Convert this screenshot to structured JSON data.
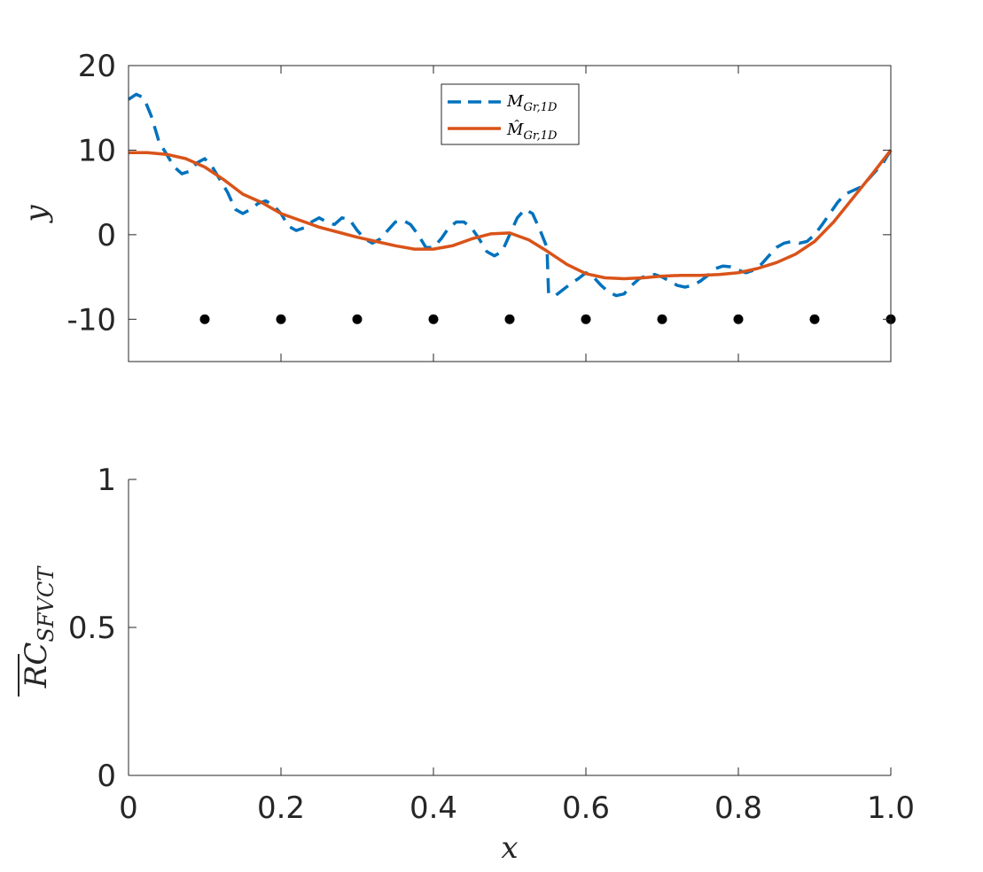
{
  "chart_data": [
    {
      "type": "line",
      "xlim": [
        0,
        1
      ],
      "ylim": [
        -15,
        20
      ],
      "ylabel": "y",
      "yticks": [
        "-10",
        "0",
        "10",
        "20"
      ],
      "yticks_values": [
        -10,
        0,
        10,
        20
      ],
      "xticks_values": [
        0,
        0.2,
        0.4,
        0.6,
        0.8,
        1.0
      ],
      "show_xticklabels": false,
      "grid": false,
      "legend_position": "top-center",
      "series": [
        {
          "name": "M_{Gr,1D}",
          "legend_main": "M",
          "legend_sub": "Gr,1D",
          "style": "dashed",
          "color": "#0072BD",
          "x": [
            0,
            0.01,
            0.02,
            0.03,
            0.04,
            0.05,
            0.06,
            0.07,
            0.08,
            0.09,
            0.1,
            0.11,
            0.12,
            0.13,
            0.14,
            0.15,
            0.16,
            0.17,
            0.18,
            0.19,
            0.2,
            0.21,
            0.22,
            0.23,
            0.24,
            0.25,
            0.26,
            0.27,
            0.28,
            0.29,
            0.3,
            0.31,
            0.32,
            0.33,
            0.34,
            0.35,
            0.36,
            0.37,
            0.38,
            0.39,
            0.4,
            0.41,
            0.42,
            0.43,
            0.44,
            0.45,
            0.46,
            0.47,
            0.48,
            0.49,
            0.5,
            0.51,
            0.52,
            0.53,
            0.54,
            0.549,
            0.551,
            0.56,
            0.57,
            0.58,
            0.59,
            0.6,
            0.61,
            0.62,
            0.63,
            0.64,
            0.65,
            0.66,
            0.67,
            0.68,
            0.69,
            0.7,
            0.71,
            0.72,
            0.73,
            0.74,
            0.75,
            0.76,
            0.77,
            0.78,
            0.79,
            0.8,
            0.81,
            0.82,
            0.83,
            0.84,
            0.85,
            0.86,
            0.87,
            0.88,
            0.89,
            0.9,
            0.91,
            0.92,
            0.93,
            0.94,
            0.95,
            0.96,
            0.97,
            0.98,
            0.99,
            1.0
          ],
          "y": [
            16,
            16.6,
            16.2,
            14,
            11,
            9.5,
            8,
            7.2,
            7.5,
            8.5,
            9,
            8,
            6.5,
            5,
            3,
            2.5,
            3,
            3.7,
            4,
            3.5,
            2.5,
            1,
            0.5,
            0.8,
            1.5,
            2,
            1.5,
            1.2,
            2,
            1.8,
            0.5,
            -0.5,
            -1,
            -0.5,
            0.5,
            1.5,
            1.7,
            1.2,
            0,
            -1.5,
            -1.5,
            -0.5,
            0.8,
            1.5,
            1.5,
            0.8,
            -0.5,
            -2,
            -2.5,
            -2,
            0,
            2,
            3,
            2.5,
            0.5,
            -1.5,
            -7,
            -7.2,
            -6.5,
            -5.8,
            -5.2,
            -4.5,
            -5,
            -6,
            -6.8,
            -7.2,
            -7,
            -6,
            -5.2,
            -4.8,
            -4.7,
            -5,
            -5.5,
            -6,
            -6.2,
            -6,
            -5.5,
            -4.8,
            -4,
            -3.7,
            -3.8,
            -4.2,
            -4.5,
            -4.2,
            -3.5,
            -2.5,
            -1.5,
            -1,
            -0.8,
            -1,
            -0.8,
            0,
            1.2,
            2.5,
            3.8,
            4.8,
            5.2,
            5.6,
            6.5,
            7.5,
            8.5,
            10
          ]
        },
        {
          "name": "̂M_{Gr,1D}",
          "legend_main": "M̂",
          "legend_sub": "Gr,1D",
          "style": "solid",
          "color": "#D95319",
          "x": [
            0,
            0.025,
            0.05,
            0.075,
            0.1,
            0.125,
            0.15,
            0.175,
            0.2,
            0.225,
            0.25,
            0.275,
            0.3,
            0.325,
            0.35,
            0.375,
            0.4,
            0.425,
            0.45,
            0.475,
            0.5,
            0.525,
            0.55,
            0.575,
            0.6,
            0.625,
            0.65,
            0.675,
            0.7,
            0.725,
            0.75,
            0.775,
            0.8,
            0.825,
            0.85,
            0.875,
            0.9,
            0.925,
            0.95,
            0.975,
            1.0
          ],
          "y": [
            9.7,
            9.7,
            9.5,
            9,
            8,
            6.5,
            4.8,
            3.8,
            2.5,
            1.7,
            0.9,
            0.3,
            -0.3,
            -0.8,
            -1.3,
            -1.7,
            -1.7,
            -1.3,
            -0.5,
            0.1,
            0.2,
            -0.6,
            -2,
            -3.5,
            -4.6,
            -5.1,
            -5.2,
            -5.1,
            -4.9,
            -4.8,
            -4.8,
            -4.7,
            -4.5,
            -4,
            -3.3,
            -2.3,
            -0.8,
            1.5,
            4.3,
            7.1,
            10
          ]
        }
      ],
      "markers": {
        "color": "#000000",
        "x": [
          0.1,
          0.2,
          0.3,
          0.4,
          0.5,
          0.6,
          0.7,
          0.8,
          0.9,
          1.0
        ],
        "y": [
          -10,
          -10,
          -10,
          -10,
          -10,
          -10,
          -10,
          -10,
          -10,
          -10
        ]
      }
    },
    {
      "type": "line",
      "xlim": [
        0,
        1
      ],
      "ylim": [
        0,
        1
      ],
      "xlabel": "x",
      "ylabel": "RC",
      "ylabel_sub": "SFVCT",
      "ylabel_overline": true,
      "yticks": [
        "0",
        "0.5",
        "1"
      ],
      "yticks_values": [
        0,
        0.5,
        1
      ],
      "xticks": [
        "0",
        "0.2",
        "0.4",
        "0.6",
        "0.8",
        "1.0"
      ],
      "xticks_values": [
        0,
        0.2,
        0.4,
        0.6,
        0.8,
        1.0
      ],
      "grid": false,
      "series": []
    }
  ]
}
